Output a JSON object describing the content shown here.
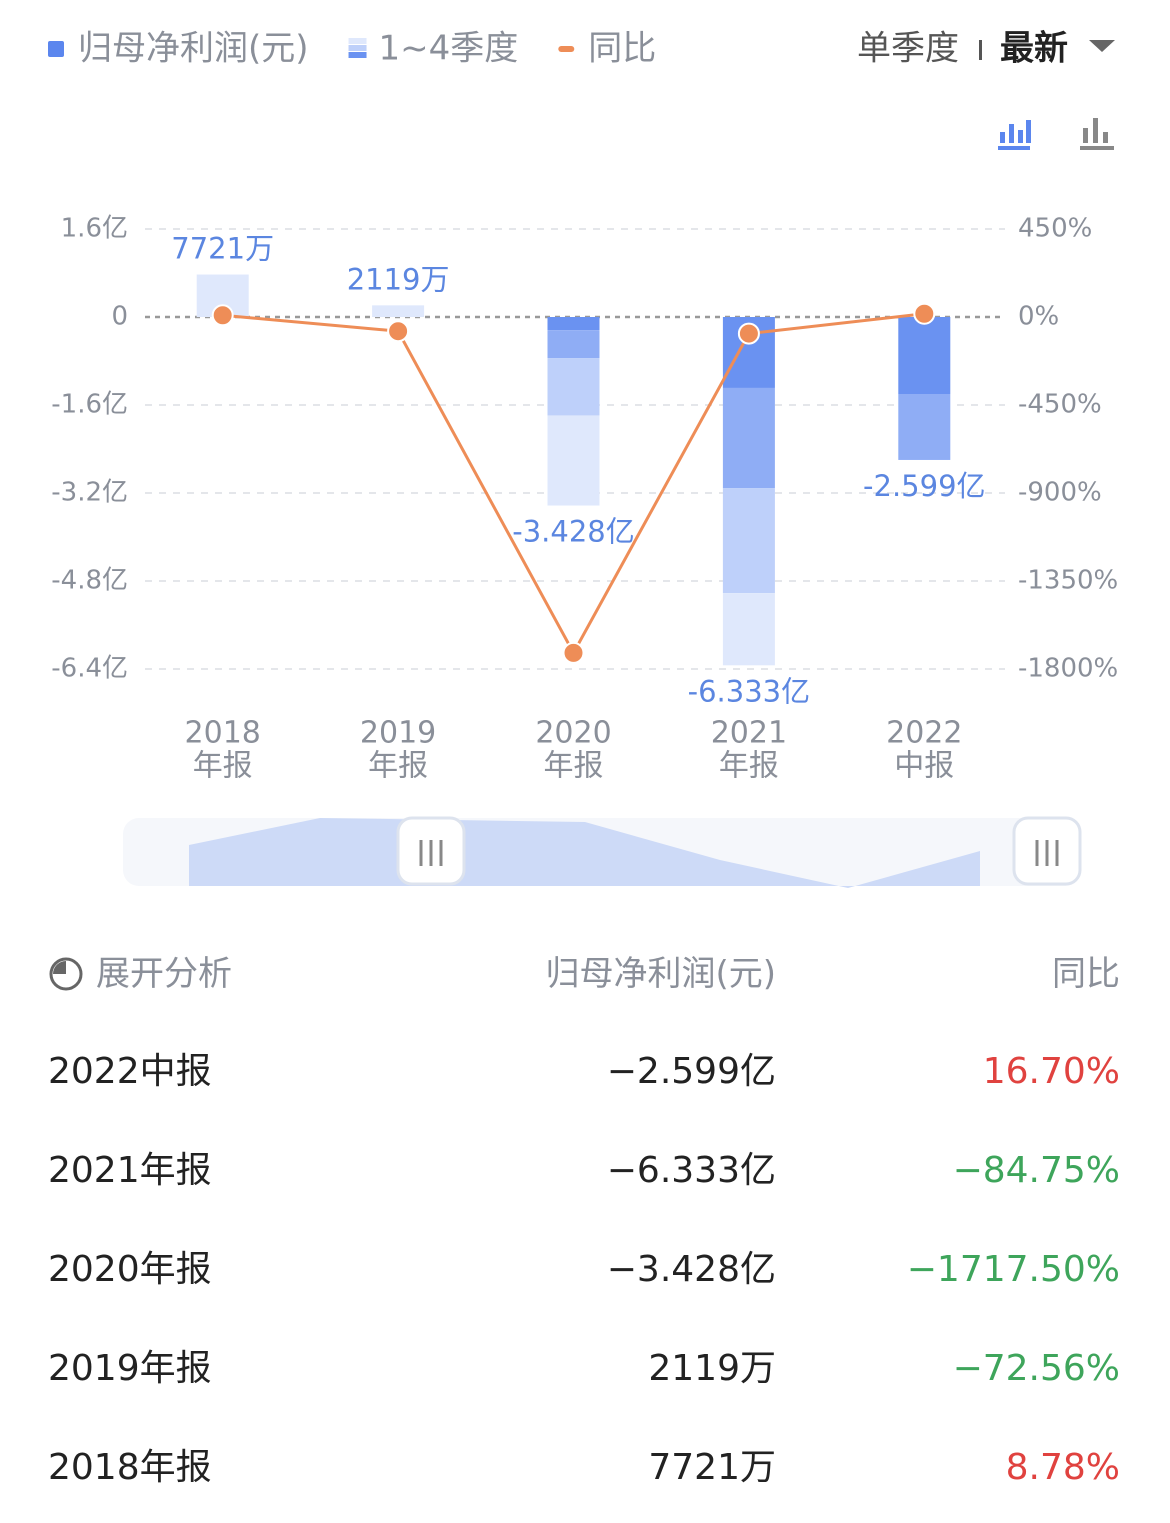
{
  "controls": {
    "mode": "单季度",
    "sort": "最新"
  },
  "chart_data": {
    "type": "bar",
    "legend": [
      "归母净利润(元)",
      "1~4季度",
      "同比"
    ],
    "legend_colors": [
      "#5b86ee",
      "#a9c0f7",
      "#ee8d57"
    ],
    "categories": [
      [
        "2018",
        "年报"
      ],
      [
        "2019",
        "年报"
      ],
      [
        "2020",
        "年报"
      ],
      [
        "2021",
        "年报"
      ],
      [
        "2022",
        "中报"
      ]
    ],
    "series": [
      {
        "color": "#6a92f1",
        "values": [
          null,
          null,
          -0.24,
          -1.29,
          -1.4
        ]
      },
      {
        "color": "#8fadf5",
        "values": [
          null,
          null,
          -0.51,
          -1.82,
          -1.199
        ]
      },
      {
        "color": "#bed0fa",
        "values": [
          null,
          null,
          -1.04,
          -1.91,
          null
        ]
      },
      {
        "color": "#dfe8fc",
        "values": [
          0.7721,
          0.2119,
          -1.638,
          -1.313,
          null
        ]
      }
    ],
    "totals": [
      0.7721,
      0.2119,
      -3.428,
      -6.333,
      -2.599
    ],
    "total_labels": [
      "7721万",
      "2119万",
      "-3.428亿",
      "-6.333亿",
      "-2.599亿"
    ],
    "line": {
      "name": "同比",
      "color": "#ee8d57",
      "axis": "y2",
      "values": [
        8.78,
        -72.56,
        -1717.5,
        -84.75,
        16.7
      ]
    },
    "ylim": [
      -6.4,
      1.6
    ],
    "yticks": [
      {
        "value": 1.6,
        "label": "1.6亿"
      },
      0,
      {
        "value": -1.6,
        "label": "-1.6亿"
      },
      {
        "value": -3.2,
        "label": "-3.2亿"
      },
      {
        "value": -4.8,
        "label": "-4.8亿"
      },
      {
        "value": -6.4,
        "label": "-6.4亿"
      }
    ],
    "y2lim": [
      -1800,
      450
    ],
    "y2ticks": [
      {
        "value": 450,
        "label": "450%"
      },
      {
        "value": 0,
        "label": "0%"
      },
      {
        "value": -450,
        "label": "-450%"
      },
      {
        "value": -900,
        "label": "-900%"
      },
      {
        "value": -1350,
        "label": "-1350%"
      },
      {
        "value": -1800,
        "label": "-1800%"
      }
    ],
    "grid": true
  },
  "table": {
    "header": [
      "展开分析",
      "归母净利润(元)",
      "同比"
    ],
    "rows": [
      {
        "period": "2022中报",
        "value": "−2.599亿",
        "change": "16.70%",
        "color": "#e0423f"
      },
      {
        "period": "2021年报",
        "value": "−6.333亿",
        "change": "−84.75%",
        "color": "#3ea55b"
      },
      {
        "period": "2020年报",
        "value": "−3.428亿",
        "change": "−1717.50%",
        "color": "#3ea55b"
      },
      {
        "period": "2019年报",
        "value": "2119万",
        "change": "−72.56%",
        "color": "#3ea55b"
      },
      {
        "period": "2018年报",
        "value": "7721万",
        "change": "8.78%",
        "color": "#e0423f"
      }
    ]
  }
}
